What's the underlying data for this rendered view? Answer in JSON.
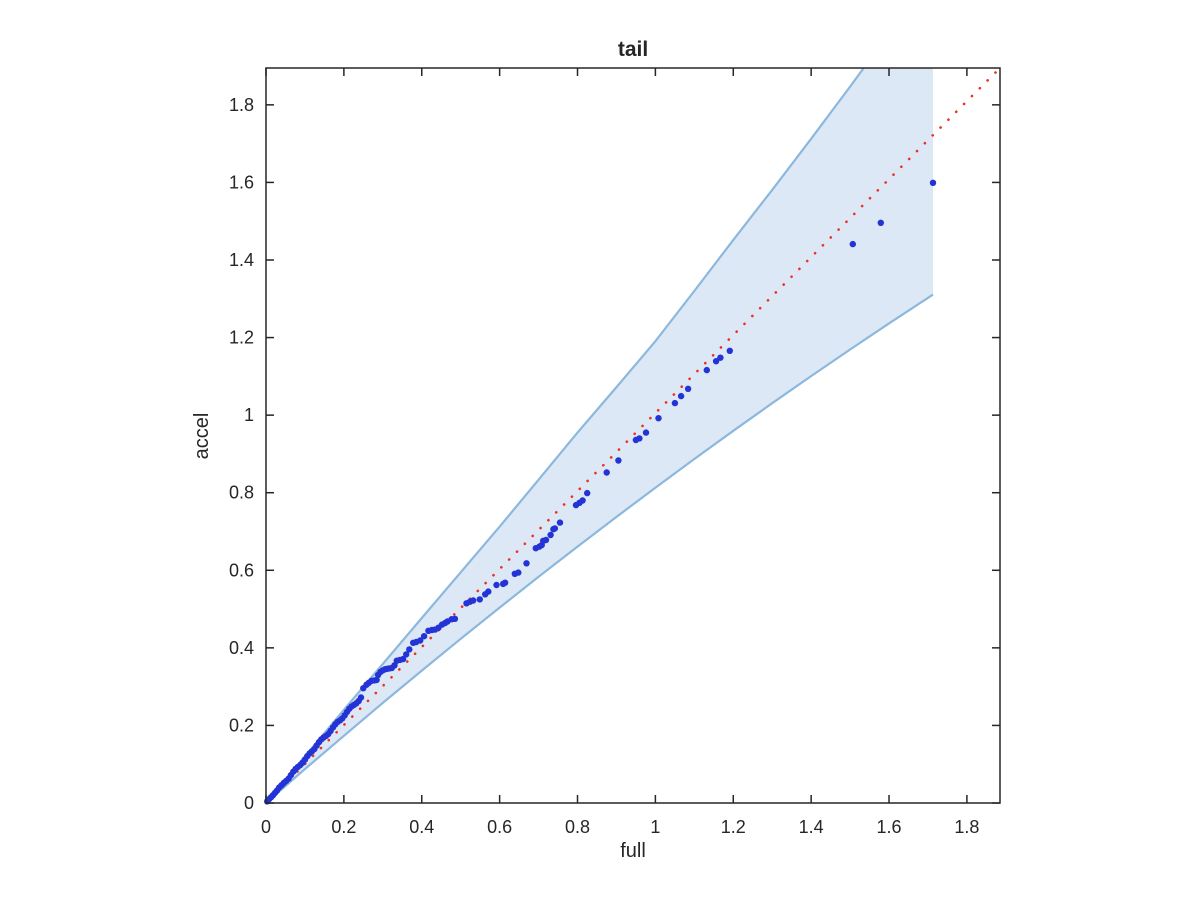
{
  "chart_data": {
    "type": "scatter",
    "title": "tail",
    "xlabel": "full",
    "ylabel": "accel",
    "xlim": [
      0,
      1.885
    ],
    "ylim": [
      0,
      1.895
    ],
    "grid": false,
    "legend": null,
    "x_ticks": {
      "values": [
        0,
        0.2,
        0.4,
        0.6,
        0.8,
        1.0,
        1.2,
        1.4,
        1.6,
        1.8
      ],
      "labels": [
        "0",
        "0.2",
        "0.4",
        "0.6",
        "0.8",
        "1",
        "1.2",
        "1.4",
        "1.6",
        "1.8"
      ]
    },
    "y_ticks": {
      "values": [
        0,
        0.2,
        0.4,
        0.6,
        0.8,
        1.0,
        1.2,
        1.4,
        1.6,
        1.8
      ],
      "labels": [
        "0",
        "0.2",
        "0.4",
        "0.6",
        "0.8",
        "1",
        "1.2",
        "1.4",
        "1.6",
        "1.8"
      ]
    },
    "colors": {
      "point": "#2433d6",
      "band_fill": "#dce8f5",
      "band_edge": "#8cb8dd",
      "reference_line": "#ee3124",
      "axis": "#262626"
    },
    "reference_line": {
      "style": "dotted",
      "from": [
        0,
        0
      ],
      "to": [
        1.885,
        1.895
      ]
    },
    "confidence_band": {
      "cap_x": 1.713,
      "cap_top_y": 1.895,
      "upper": [
        [
          0,
          0
        ],
        [
          0.1,
          0.1202
        ],
        [
          0.2,
          0.2404
        ],
        [
          0.3,
          0.3585
        ],
        [
          0.4,
          0.4769
        ],
        [
          0.5,
          0.5948
        ],
        [
          0.6,
          0.7124
        ],
        [
          0.7,
          0.8335
        ],
        [
          0.8,
          0.9551
        ],
        [
          0.9,
          1.0722
        ],
        [
          1.0,
          1.1905
        ],
        [
          1.1,
          1.32
        ],
        [
          1.2,
          1.4518
        ],
        [
          1.3,
          1.5808
        ],
        [
          1.4,
          1.7125
        ],
        [
          1.5,
          1.847
        ],
        [
          1.535,
          1.895
        ]
      ],
      "lower": [
        [
          0,
          0
        ],
        [
          0.1,
          0.0873
        ],
        [
          0.2,
          0.1733
        ],
        [
          0.3,
          0.258
        ],
        [
          0.4,
          0.3413
        ],
        [
          0.5,
          0.4233
        ],
        [
          0.6,
          0.5039
        ],
        [
          0.7,
          0.5831
        ],
        [
          0.8,
          0.6611
        ],
        [
          0.9,
          0.7377
        ],
        [
          1.0,
          0.813
        ],
        [
          1.1,
          0.8869
        ],
        [
          1.2,
          0.9595
        ],
        [
          1.3,
          1.0307
        ],
        [
          1.4,
          1.1006
        ],
        [
          1.5,
          1.1693
        ],
        [
          1.6,
          1.2365
        ],
        [
          1.713,
          1.3108
        ]
      ]
    },
    "points": [
      [
        0.003,
        0.004
      ],
      [
        0.008,
        0.01
      ],
      [
        0.013,
        0.015
      ],
      [
        0.018,
        0.02
      ],
      [
        0.023,
        0.026
      ],
      [
        0.028,
        0.032
      ],
      [
        0.034,
        0.04
      ],
      [
        0.04,
        0.046
      ],
      [
        0.046,
        0.052
      ],
      [
        0.052,
        0.057
      ],
      [
        0.058,
        0.063
      ],
      [
        0.064,
        0.072
      ],
      [
        0.07,
        0.081
      ],
      [
        0.076,
        0.088
      ],
      [
        0.082,
        0.093
      ],
      [
        0.088,
        0.098
      ],
      [
        0.094,
        0.104
      ],
      [
        0.1,
        0.112
      ],
      [
        0.106,
        0.121
      ],
      [
        0.112,
        0.128
      ],
      [
        0.118,
        0.133
      ],
      [
        0.124,
        0.139
      ],
      [
        0.13,
        0.148
      ],
      [
        0.136,
        0.157
      ],
      [
        0.142,
        0.164
      ],
      [
        0.148,
        0.169
      ],
      [
        0.154,
        0.173
      ],
      [
        0.16,
        0.178
      ],
      [
        0.166,
        0.186
      ],
      [
        0.172,
        0.195
      ],
      [
        0.178,
        0.203
      ],
      [
        0.184,
        0.209
      ],
      [
        0.19,
        0.213
      ],
      [
        0.196,
        0.218
      ],
      [
        0.202,
        0.226
      ],
      [
        0.208,
        0.235
      ],
      [
        0.214,
        0.243
      ],
      [
        0.22,
        0.249
      ],
      [
        0.226,
        0.253
      ],
      [
        0.232,
        0.257
      ],
      [
        0.238,
        0.263
      ],
      [
        0.244,
        0.272
      ],
      [
        0.25,
        0.296
      ],
      [
        0.258,
        0.305
      ],
      [
        0.264,
        0.31
      ],
      [
        0.271,
        0.315
      ],
      [
        0.278,
        0.316
      ],
      [
        0.284,
        0.317
      ],
      [
        0.288,
        0.33
      ],
      [
        0.294,
        0.338
      ],
      [
        0.3,
        0.342
      ],
      [
        0.306,
        0.345
      ],
      [
        0.311,
        0.346
      ],
      [
        0.317,
        0.347
      ],
      [
        0.323,
        0.348
      ],
      [
        0.33,
        0.355
      ],
      [
        0.336,
        0.367
      ],
      [
        0.344,
        0.369
      ],
      [
        0.352,
        0.371
      ],
      [
        0.36,
        0.383
      ],
      [
        0.368,
        0.396
      ],
      [
        0.378,
        0.413
      ],
      [
        0.386,
        0.415
      ],
      [
        0.396,
        0.419
      ],
      [
        0.406,
        0.43
      ],
      [
        0.417,
        0.444
      ],
      [
        0.426,
        0.446
      ],
      [
        0.434,
        0.447
      ],
      [
        0.443,
        0.452
      ],
      [
        0.452,
        0.46
      ],
      [
        0.46,
        0.464
      ],
      [
        0.466,
        0.468
      ],
      [
        0.477,
        0.474
      ],
      [
        0.485,
        0.475
      ],
      [
        0.515,
        0.515
      ],
      [
        0.524,
        0.519
      ],
      [
        0.532,
        0.522
      ],
      [
        0.549,
        0.525
      ],
      [
        0.563,
        0.538
      ],
      [
        0.571,
        0.545
      ],
      [
        0.592,
        0.562
      ],
      [
        0.609,
        0.565
      ],
      [
        0.614,
        0.568
      ],
      [
        0.639,
        0.591
      ],
      [
        0.648,
        0.594
      ],
      [
        0.669,
        0.618
      ],
      [
        0.693,
        0.657
      ],
      [
        0.702,
        0.661
      ],
      [
        0.708,
        0.665
      ],
      [
        0.712,
        0.676
      ],
      [
        0.719,
        0.678
      ],
      [
        0.731,
        0.691
      ],
      [
        0.738,
        0.706
      ],
      [
        0.742,
        0.708
      ],
      [
        0.755,
        0.723
      ],
      [
        0.796,
        0.768
      ],
      [
        0.805,
        0.774
      ],
      [
        0.813,
        0.78
      ],
      [
        0.825,
        0.799
      ],
      [
        0.875,
        0.852
      ],
      [
        0.905,
        0.883
      ],
      [
        0.95,
        0.936
      ],
      [
        0.959,
        0.94
      ],
      [
        0.976,
        0.955
      ],
      [
        1.008,
        0.992
      ],
      [
        1.05,
        1.031
      ],
      [
        1.066,
        1.049
      ],
      [
        1.084,
        1.068
      ],
      [
        1.132,
        1.116
      ],
      [
        1.156,
        1.139
      ],
      [
        1.167,
        1.148
      ],
      [
        1.191,
        1.166
      ],
      [
        1.507,
        1.441
      ],
      [
        1.579,
        1.496
      ],
      [
        1.713,
        1.599
      ]
    ]
  }
}
